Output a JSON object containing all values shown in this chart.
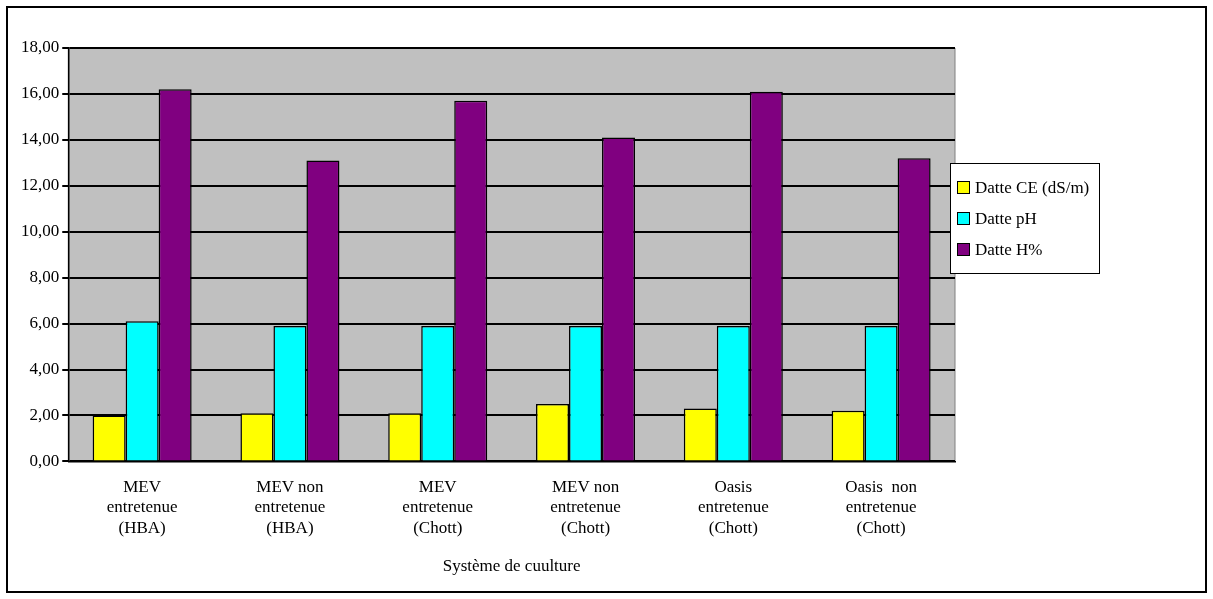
{
  "chart_data": {
    "type": "bar",
    "xlabel": "Système de cuulture",
    "categories": [
      "MEV\nentretenue\n(HBA)",
      "MEV non\nentretenue\n(HBA)",
      "MEV\nentretenue\n(Chott)",
      "MEV non\nentretenue\n(Chott)",
      "Oasis\nentretenue\n(Chott)",
      "Oasis  non\nentretenue\n(Chott)"
    ],
    "series": [
      {
        "name": "Datte CE (dS/m)",
        "color": "#ffff00",
        "values": [
          2.0,
          2.1,
          2.1,
          2.5,
          2.3,
          2.2
        ]
      },
      {
        "name": "Datte pH",
        "color": "#00ffff",
        "values": [
          6.1,
          5.9,
          5.9,
          5.9,
          5.9,
          5.9
        ]
      },
      {
        "name": "Datte H%",
        "color": "#800080",
        "values": [
          16.2,
          13.1,
          15.7,
          14.1,
          16.1,
          13.2
        ]
      }
    ],
    "ylim": [
      0,
      18
    ],
    "yticks": [
      {
        "value": 0,
        "label": "0,00"
      },
      {
        "value": 2,
        "label": "2,00"
      },
      {
        "value": 4,
        "label": "4,00"
      },
      {
        "value": 6,
        "label": "6,00"
      },
      {
        "value": 8,
        "label": "8,00"
      },
      {
        "value": 10,
        "label": "10,00"
      },
      {
        "value": 12,
        "label": "12,00"
      },
      {
        "value": 14,
        "label": "14,00"
      },
      {
        "value": 16,
        "label": "16,00"
      },
      {
        "value": 18,
        "label": "18,00"
      }
    ],
    "grid": "y",
    "legend": "right"
  }
}
